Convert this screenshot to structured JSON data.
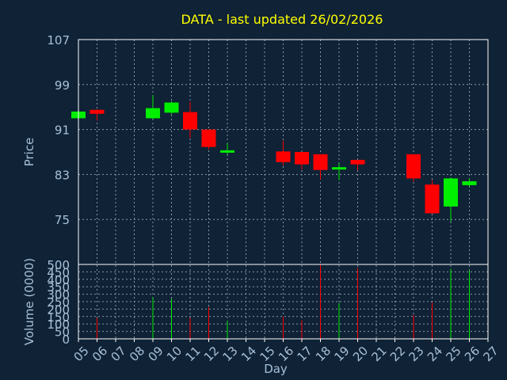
{
  "chart_data": {
    "type": "candlestick",
    "title": "DATA - last updated 26/02/2026",
    "xlabel": "Day",
    "x_ticks": [
      "05",
      "06",
      "07",
      "08",
      "09",
      "10",
      "11",
      "12",
      "13",
      "14",
      "15",
      "16",
      "17",
      "18",
      "19",
      "20",
      "21",
      "22",
      "23",
      "24",
      "25",
      "26",
      "27"
    ],
    "price_panel": {
      "ylabel": "Price",
      "ylim": [
        67,
        107
      ],
      "y_ticks": [
        107,
        99,
        91,
        83,
        75
      ],
      "candles": [
        {
          "day": "05",
          "open": 93.0,
          "close": 94.2,
          "high": 94.2,
          "low": 93.0
        },
        {
          "day": "06",
          "open": 94.5,
          "close": 93.8,
          "high": 94.6,
          "low": 92.6
        },
        {
          "day": "09",
          "open": 93.0,
          "close": 94.8,
          "high": 97.1,
          "low": 92.9
        },
        {
          "day": "10",
          "open": 94.0,
          "close": 95.8,
          "high": 96.0,
          "low": 93.7
        },
        {
          "day": "11",
          "open": 94.1,
          "close": 91.0,
          "high": 95.9,
          "low": 89.5
        },
        {
          "day": "12",
          "open": 91.0,
          "close": 87.9,
          "high": 91.0,
          "low": 87.5
        },
        {
          "day": "13",
          "open": 87.0,
          "close": 87.3,
          "high": 88.6,
          "low": 86.6
        },
        {
          "day": "16",
          "open": 87.1,
          "close": 85.2,
          "high": 89.0,
          "low": 84.6
        },
        {
          "day": "17",
          "open": 87.0,
          "close": 84.8,
          "high": 87.0,
          "low": 83.9
        },
        {
          "day": "18",
          "open": 86.6,
          "close": 83.8,
          "high": 86.6,
          "low": 82.1
        },
        {
          "day": "19",
          "open": 84.0,
          "close": 84.3,
          "high": 85.0,
          "low": 82.0
        },
        {
          "day": "20",
          "open": 85.6,
          "close": 84.8,
          "high": 85.6,
          "low": 83.8
        },
        {
          "day": "23",
          "open": 86.6,
          "close": 82.3,
          "high": 86.6,
          "low": 81.7
        },
        {
          "day": "24",
          "open": 81.2,
          "close": 76.1,
          "high": 82.0,
          "low": 76.0
        },
        {
          "day": "25",
          "open": 77.3,
          "close": 82.3,
          "high": 82.5,
          "low": 74.6
        },
        {
          "day": "26",
          "open": 81.1,
          "close": 81.8,
          "high": 82.3,
          "low": 80.8
        }
      ]
    },
    "volume_panel": {
      "ylabel": "Volume (0000)",
      "ylim": [
        0,
        500
      ],
      "y_ticks": [
        500,
        450,
        400,
        350,
        300,
        250,
        200,
        150,
        100,
        50,
        0
      ],
      "bars": [
        {
          "day": "06",
          "value": 140,
          "direction": "down"
        },
        {
          "day": "09",
          "value": 280,
          "direction": "up"
        },
        {
          "day": "10",
          "value": 270,
          "direction": "up"
        },
        {
          "day": "11",
          "value": 140,
          "direction": "down"
        },
        {
          "day": "12",
          "value": 215,
          "direction": "down"
        },
        {
          "day": "13",
          "value": 120,
          "direction": "up"
        },
        {
          "day": "16",
          "value": 150,
          "direction": "down"
        },
        {
          "day": "17",
          "value": 125,
          "direction": "down"
        },
        {
          "day": "18",
          "value": 500,
          "direction": "down"
        },
        {
          "day": "19",
          "value": 240,
          "direction": "up"
        },
        {
          "day": "20",
          "value": 475,
          "direction": "down"
        },
        {
          "day": "23",
          "value": 160,
          "direction": "down"
        },
        {
          "day": "24",
          "value": 245,
          "direction": "down"
        },
        {
          "day": "25",
          "value": 470,
          "direction": "up"
        },
        {
          "day": "26",
          "value": 460,
          "direction": "up"
        }
      ]
    },
    "grid": true,
    "colors": {
      "background": "#0f2236",
      "plot_border": "#ffffff",
      "grid": "#8a98a8",
      "axis_text": "#a7c0d8",
      "title": "#ffff00",
      "up": "#00ee00",
      "down": "#ff0000"
    }
  }
}
